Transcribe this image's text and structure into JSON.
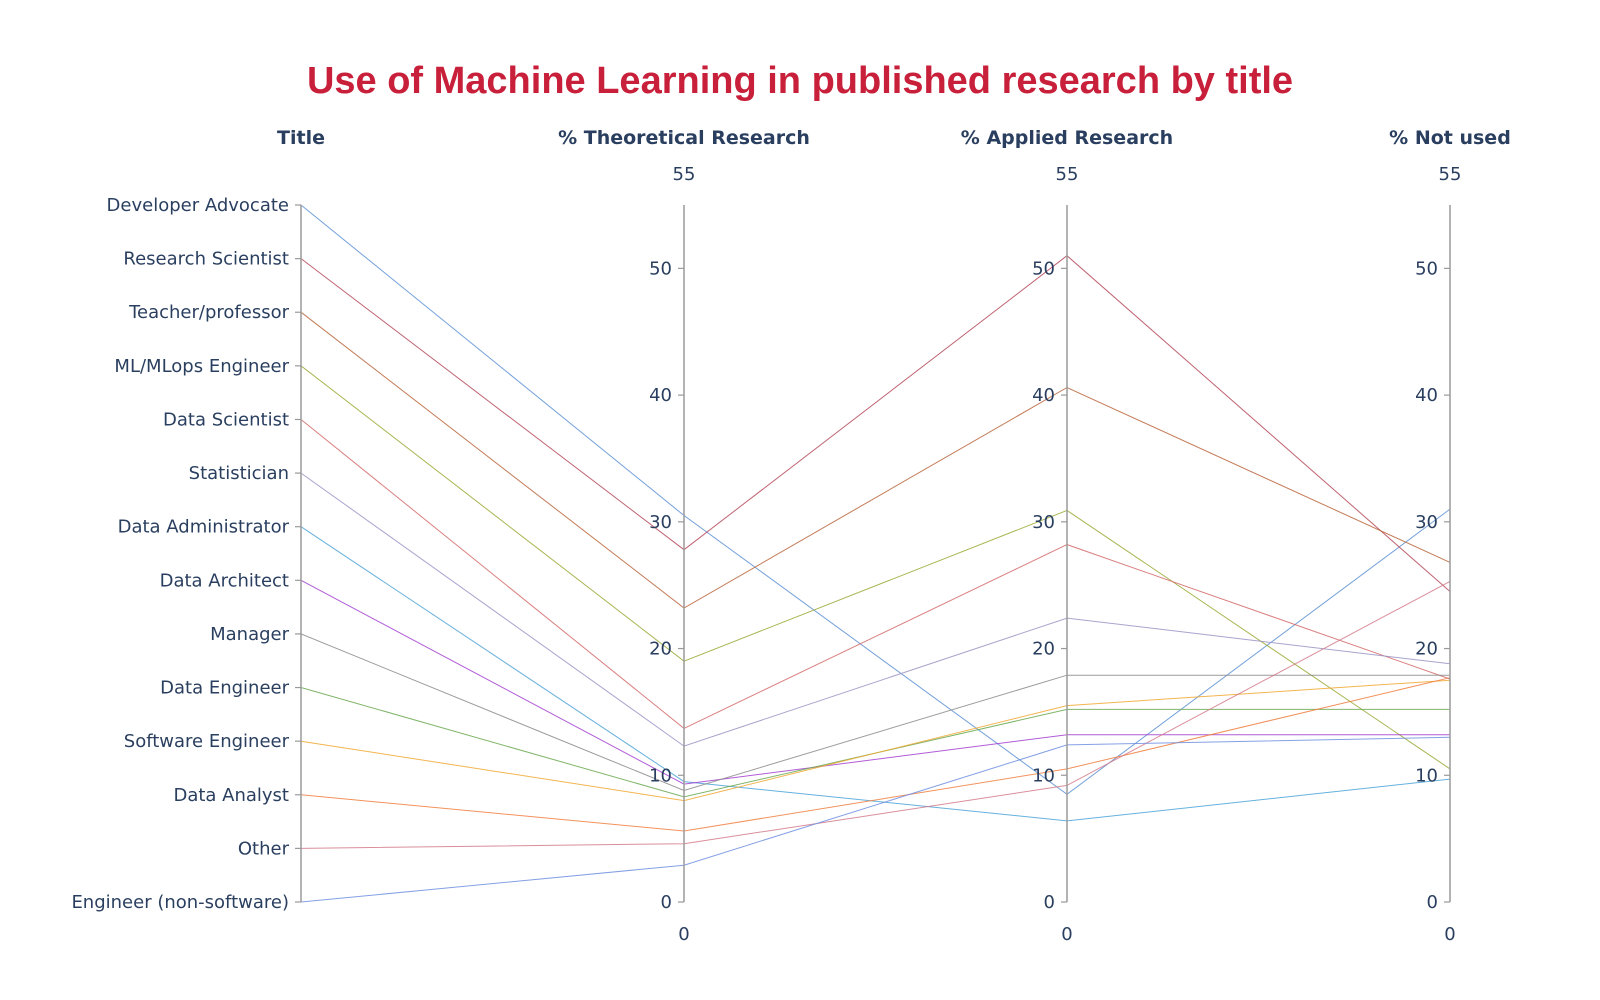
{
  "chart_data": {
    "type": "parcoords",
    "title": "Use of Machine Learning in published research by title",
    "dimensions": [
      {
        "key": "title",
        "label": "Title",
        "categorical": true
      },
      {
        "key": "theoretical",
        "label": "% Theoretical Research",
        "range": [
          0,
          55
        ],
        "ticks": [
          0,
          10,
          20,
          30,
          40,
          50
        ],
        "range_labels": [
          "55",
          "0"
        ]
      },
      {
        "key": "applied",
        "label": "% Applied Research",
        "range": [
          0,
          55
        ],
        "ticks": [
          0,
          10,
          20,
          30,
          40,
          50
        ],
        "range_labels": [
          "55",
          "0"
        ]
      },
      {
        "key": "not_used",
        "label": "% Not used",
        "range": [
          0,
          55
        ],
        "ticks": [
          0,
          10,
          20,
          30,
          40,
          50
        ],
        "range_labels": [
          "55",
          "0"
        ]
      }
    ],
    "categories": [
      "Developer Advocate",
      "Research Scientist",
      "Teacher/professor",
      "ML/MLops Engineer",
      "Data Scientist",
      "Statistician",
      "Data Administrator",
      "Data Architect",
      "Manager",
      "Data Engineer",
      "Software Engineer",
      "Data Analyst",
      "Other",
      "Engineer (non-software)"
    ],
    "series": [
      {
        "title": "Developer Advocate",
        "theoretical": 30.5,
        "applied": 8.5,
        "not_used": 31.0,
        "color": "#5b8fd4"
      },
      {
        "title": "Research Scientist",
        "theoretical": 27.8,
        "applied": 51.0,
        "not_used": 24.5,
        "color": "#b5495b"
      },
      {
        "title": "Teacher/professor",
        "theoretical": 23.2,
        "applied": 40.6,
        "not_used": 26.8,
        "color": "#b8643a"
      },
      {
        "title": "ML/MLops Engineer",
        "theoretical": 19.0,
        "applied": 30.9,
        "not_used": 10.5,
        "color": "#9aa832"
      },
      {
        "title": "Data Scientist",
        "theoretical": 13.7,
        "applied": 28.2,
        "not_used": 17.6,
        "color": "#d46a6a"
      },
      {
        "title": "Statistician",
        "theoretical": 12.3,
        "applied": 22.4,
        "not_used": 18.8,
        "color": "#9b93c4"
      },
      {
        "title": "Data Administrator",
        "theoretical": 9.5,
        "applied": 6.4,
        "not_used": 9.7,
        "color": "#4aa3d8"
      },
      {
        "title": "Data Architect",
        "theoretical": 9.3,
        "applied": 13.2,
        "not_used": 13.2,
        "color": "#a33fd0"
      },
      {
        "title": "Manager",
        "theoretical": 8.8,
        "applied": 17.9,
        "not_used": 17.9,
        "color": "#8a8a8a"
      },
      {
        "title": "Data Engineer",
        "theoretical": 8.3,
        "applied": 15.2,
        "not_used": 15.2,
        "color": "#6aa84f"
      },
      {
        "title": "Software Engineer",
        "theoretical": 8.0,
        "applied": 15.5,
        "not_used": 17.5,
        "color": "#f0a830"
      },
      {
        "title": "Data Analyst",
        "theoretical": 5.6,
        "applied": 10.5,
        "not_used": 17.7,
        "color": "#f07f40"
      },
      {
        "title": "Other",
        "theoretical": 4.6,
        "applied": 9.2,
        "not_used": 25.3,
        "color": "#d47a8a"
      },
      {
        "title": "Engineer (non-software)",
        "theoretical": 2.9,
        "applied": 12.4,
        "not_used": 13.0,
        "color": "#6f8fe0"
      }
    ]
  }
}
